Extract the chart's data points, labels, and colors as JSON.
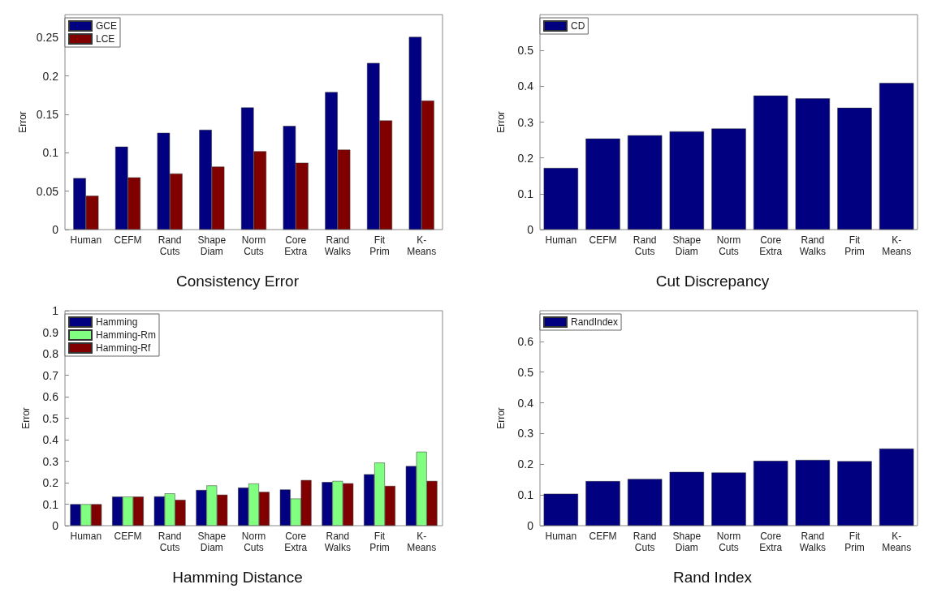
{
  "chart_data": [
    {
      "type": "bar",
      "title": "Consistency Error",
      "ylabel": "Error",
      "categories": [
        "Human",
        "CEFM",
        "Rand Cuts",
        "Shape Diam",
        "Norm Cuts",
        "Core Extra",
        "Rand Walks",
        "Fit Prim",
        "K-Means"
      ],
      "series": [
        {
          "name": "GCE",
          "color": "#000080",
          "values": [
            0.067,
            0.108,
            0.126,
            0.13,
            0.159,
            0.135,
            0.179,
            0.217,
            0.251
          ]
        },
        {
          "name": "LCE",
          "color": "#800000",
          "values": [
            0.044,
            0.068,
            0.073,
            0.082,
            0.102,
            0.087,
            0.104,
            0.142,
            0.168
          ]
        }
      ],
      "ylim": [
        0,
        0.28
      ],
      "yticks": [
        0,
        0.05,
        0.1,
        0.15,
        0.2,
        0.25
      ],
      "legend": "top left",
      "grid": false
    },
    {
      "type": "bar",
      "title": "Cut Discrepancy",
      "ylabel": "Error",
      "categories": [
        "Human",
        "CEFM",
        "Rand Cuts",
        "Shape Diam",
        "Norm Cuts",
        "Core Extra",
        "Rand Walks",
        "Fit Prim",
        "K-Means"
      ],
      "series": [
        {
          "name": "CD",
          "color": "#000080",
          "values": [
            0.172,
            0.254,
            0.263,
            0.274,
            0.282,
            0.374,
            0.366,
            0.34,
            0.409
          ]
        }
      ],
      "ylim": [
        0,
        0.6
      ],
      "yticks": [
        0,
        0.1,
        0.2,
        0.3,
        0.4,
        0.5
      ],
      "legend": "top left",
      "grid": false
    },
    {
      "type": "bar",
      "title": "Hamming Distance",
      "ylabel": "Error",
      "categories": [
        "Human",
        "CEFM",
        "Rand Cuts",
        "Shape Diam",
        "Norm Cuts",
        "Core Extra",
        "Rand Walks",
        "Fit Prim",
        "K-Means"
      ],
      "series": [
        {
          "name": "Hamming",
          "color": "#000080",
          "values": [
            0.1,
            0.135,
            0.136,
            0.166,
            0.177,
            0.168,
            0.203,
            0.239,
            0.277
          ]
        },
        {
          "name": "Hamming-Rm",
          "color": "#80ff80",
          "values": [
            0.1,
            0.135,
            0.15,
            0.187,
            0.196,
            0.126,
            0.208,
            0.293,
            0.344
          ]
        },
        {
          "name": "Hamming-Rf",
          "color": "#800000",
          "values": [
            0.1,
            0.135,
            0.12,
            0.144,
            0.157,
            0.212,
            0.197,
            0.185,
            0.208
          ]
        }
      ],
      "ylim": [
        0,
        1
      ],
      "yticks": [
        0,
        0.1,
        0.2,
        0.3,
        0.4,
        0.5,
        0.6,
        0.7,
        0.8,
        0.9,
        1
      ],
      "legend": "top left",
      "grid": false
    },
    {
      "type": "bar",
      "title": "Rand Index",
      "ylabel": "Error",
      "categories": [
        "Human",
        "CEFM",
        "Rand Cuts",
        "Shape Diam",
        "Norm Cuts",
        "Core Extra",
        "Rand Walks",
        "Fit Prim",
        "K-Means"
      ],
      "series": [
        {
          "name": "RandIndex",
          "color": "#000080",
          "values": [
            0.104,
            0.145,
            0.152,
            0.175,
            0.173,
            0.211,
            0.214,
            0.21,
            0.251
          ]
        }
      ],
      "ylim": [
        0,
        0.7
      ],
      "yticks": [
        0,
        0.1,
        0.2,
        0.3,
        0.4,
        0.5,
        0.6
      ],
      "legend": "top left",
      "grid": false
    }
  ]
}
